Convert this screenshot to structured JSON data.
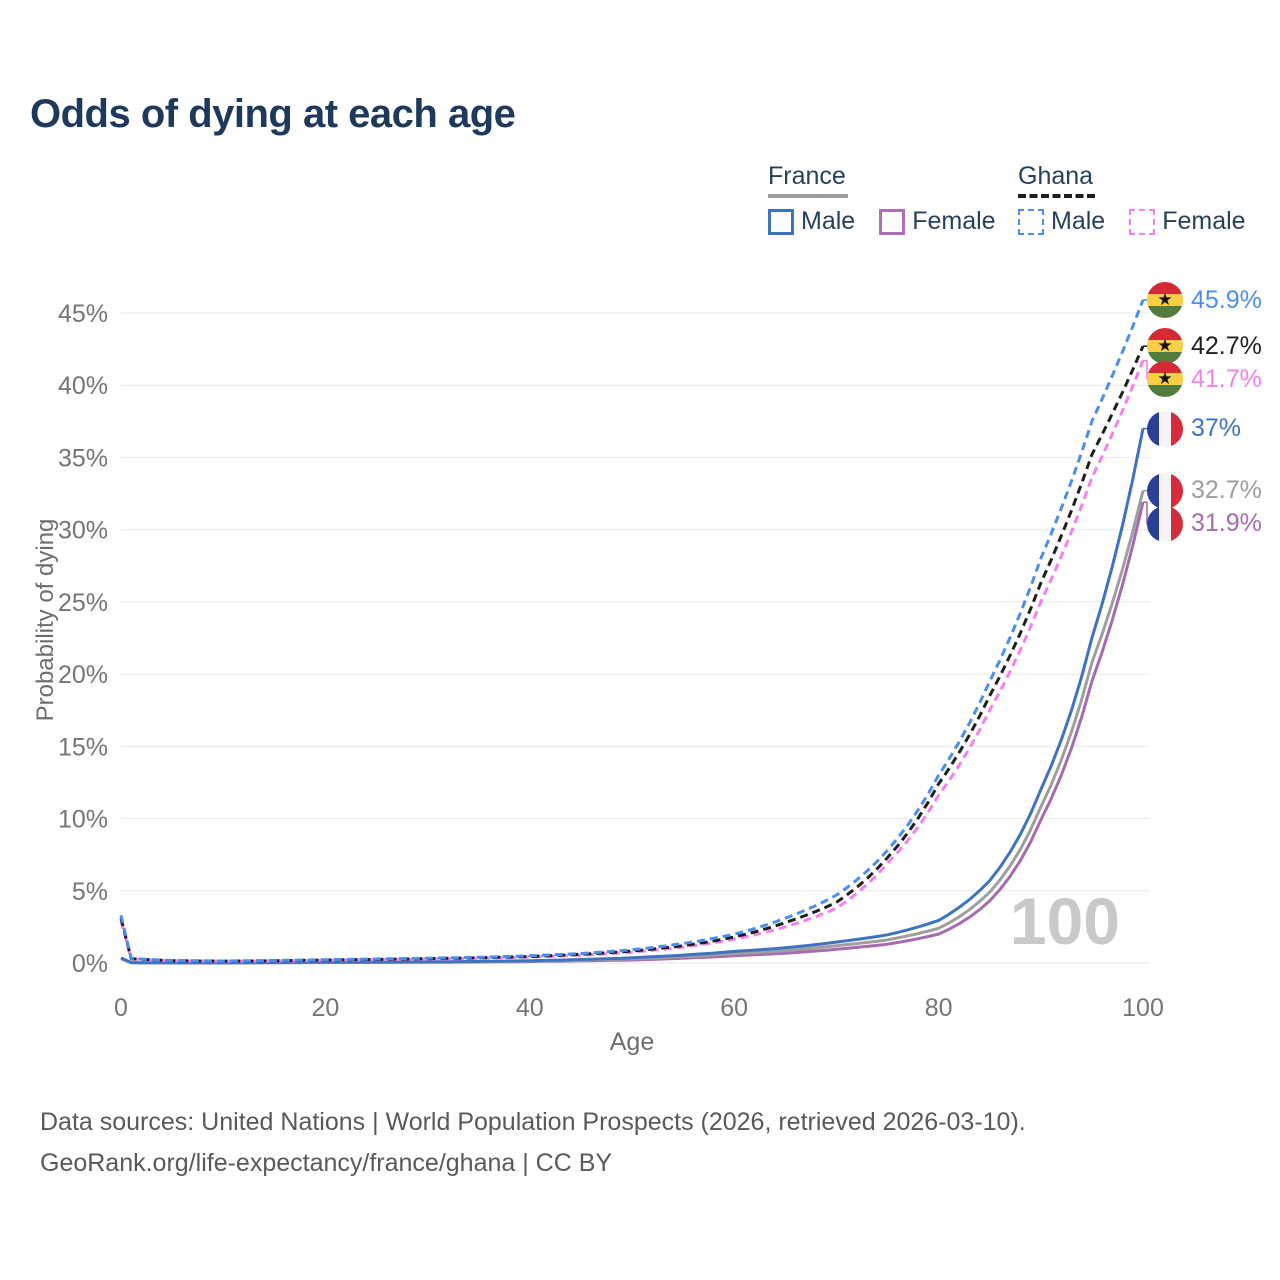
{
  "title": "Odds of dying at each age",
  "colors": {
    "title_text": "#1d3a5c",
    "axis_text": "#6e6e6e",
    "tick_text": "#757575",
    "grid_line": "#ececec",
    "watermark_text": "#c9c9c9",
    "footer_text": "#595959",
    "legend_text": "#27405c"
  },
  "legend": {
    "groups": [
      {
        "label": "France",
        "underline": {
          "style": "solid",
          "color": "#9e9e9e"
        },
        "items": [
          {
            "label": "Male",
            "color": "#3e73c2",
            "dashed": false
          },
          {
            "label": "Female",
            "color": "#b06fb5",
            "dashed": false
          }
        ]
      },
      {
        "label": "Ghana",
        "underline": {
          "style": "dashed",
          "color": "#1f1f1f"
        },
        "items": [
          {
            "label": "Male",
            "color": "#4c8df2",
            "dashed": true
          },
          {
            "label": "Female",
            "color": "#f67ff0",
            "dashed": true
          }
        ]
      }
    ]
  },
  "chart_data": {
    "type": "line",
    "title": "Odds of dying at each age",
    "xlabel": "Age",
    "ylabel": "Probability of dying",
    "xlim": [
      0,
      100
    ],
    "ylim": [
      0,
      45
    ],
    "grid": "horizontal",
    "legend_position": "top-right",
    "watermark": "100",
    "x_ticks": [
      {
        "value": 0,
        "label": "0"
      },
      {
        "value": 20,
        "label": "20"
      },
      {
        "value": 40,
        "label": "40"
      },
      {
        "value": 60,
        "label": "60"
      },
      {
        "value": 80,
        "label": "80"
      },
      {
        "value": 100,
        "label": "100"
      }
    ],
    "y_ticks": [
      {
        "value": 0,
        "label": "0%"
      },
      {
        "value": 5,
        "label": "5%"
      },
      {
        "value": 10,
        "label": "10%"
      },
      {
        "value": 15,
        "label": "15%"
      },
      {
        "value": 20,
        "label": "20%"
      },
      {
        "value": 25,
        "label": "25%"
      },
      {
        "value": 30,
        "label": "30%"
      },
      {
        "value": 35,
        "label": "35%"
      },
      {
        "value": 40,
        "label": "40%"
      },
      {
        "value": 45,
        "label": "45%"
      }
    ],
    "x": [
      0,
      1,
      5,
      10,
      15,
      20,
      25,
      30,
      35,
      40,
      45,
      50,
      55,
      60,
      65,
      70,
      75,
      80,
      85,
      90,
      95,
      100
    ],
    "series": [
      {
        "name": "Ghana Male",
        "country": "ghana",
        "color": "#4c8df2",
        "dashed": true,
        "end_label": "45.9%",
        "end_value": 45.9,
        "values": [
          3.3,
          0.32,
          0.17,
          0.14,
          0.17,
          0.23,
          0.28,
          0.33,
          0.4,
          0.5,
          0.66,
          0.92,
          1.35,
          2.0,
          3.1,
          4.7,
          7.8,
          13.0,
          19.5,
          28.0,
          37.5,
          45.9
        ]
      },
      {
        "name": "Ghana Both sexes",
        "country": "ghana",
        "color": "#1f1f1f",
        "dashed": true,
        "end_label": "42.7%",
        "end_value": 42.7,
        "values": [
          3.1,
          0.3,
          0.16,
          0.13,
          0.15,
          0.21,
          0.25,
          0.3,
          0.36,
          0.45,
          0.6,
          0.83,
          1.2,
          1.8,
          2.8,
          4.2,
          7.3,
          12.4,
          18.5,
          26.3,
          35.2,
          42.7
        ]
      },
      {
        "name": "Ghana Female",
        "country": "ghana",
        "color": "#f67ff0",
        "dashed": true,
        "end_label": "41.7%",
        "end_value": 41.7,
        "values": [
          2.9,
          0.28,
          0.15,
          0.12,
          0.14,
          0.19,
          0.23,
          0.27,
          0.33,
          0.41,
          0.54,
          0.75,
          1.1,
          1.65,
          2.5,
          3.8,
          6.9,
          11.6,
          17.5,
          25.0,
          33.6,
          41.7
        ]
      },
      {
        "name": "France Male",
        "country": "france",
        "color": "#3e73c2",
        "dashed": false,
        "end_label": "37%",
        "end_value": 37,
        "values": [
          0.35,
          0.03,
          0.01,
          0.01,
          0.04,
          0.06,
          0.07,
          0.08,
          0.11,
          0.16,
          0.24,
          0.36,
          0.55,
          0.8,
          1.05,
          1.45,
          1.95,
          2.95,
          5.7,
          12.0,
          22.5,
          37.0
        ]
      },
      {
        "name": "France Both sexes",
        "country": "france",
        "color": "#9e9e9e",
        "dashed": false,
        "end_label": "32.7%",
        "end_value": 32.7,
        "values": [
          0.32,
          0.03,
          0.01,
          0.01,
          0.03,
          0.04,
          0.05,
          0.07,
          0.09,
          0.13,
          0.19,
          0.28,
          0.43,
          0.65,
          0.85,
          1.2,
          1.6,
          2.4,
          4.9,
          10.8,
          20.8,
          32.7
        ]
      },
      {
        "name": "France Female",
        "country": "france",
        "color": "#a66aae",
        "dashed": false,
        "end_label": "31.9%",
        "end_value": 31.9,
        "values": [
          0.3,
          0.02,
          0.01,
          0.01,
          0.02,
          0.03,
          0.04,
          0.05,
          0.07,
          0.1,
          0.15,
          0.21,
          0.33,
          0.5,
          0.68,
          0.95,
          1.3,
          2.0,
          4.3,
          9.9,
          19.5,
          31.9
        ]
      }
    ]
  },
  "footer": {
    "line1": "Data sources: United Nations | World Population Prospects (2026, retrieved 2026-03-10).",
    "line2": "GeoRank.org/life-expectancy/france/ghana | CC BY"
  }
}
